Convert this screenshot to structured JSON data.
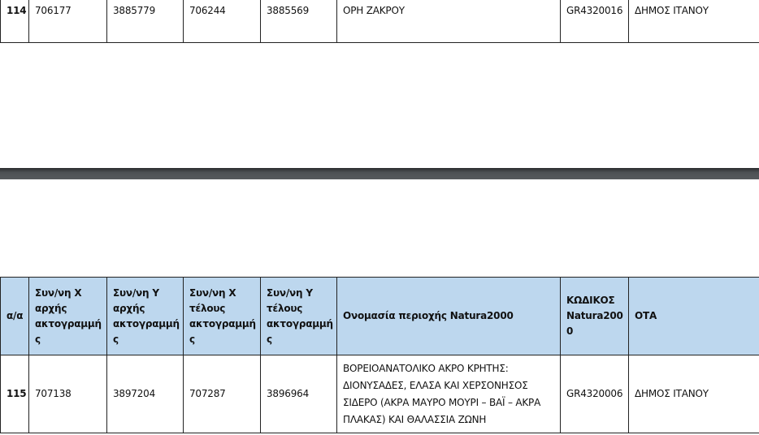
{
  "top_table": {
    "row": {
      "aa": "114",
      "x_start": "706177",
      "y_start": "3885779",
      "x_end": "706244",
      "y_end": "3885569",
      "name": "ΟΡΗ ΖΑΚΡΟΥ",
      "code": "GR4320016",
      "ota": "ΔΗΜΟΣ ΙΤΑΝΟΥ"
    }
  },
  "bottom_table": {
    "headers": {
      "aa": "α/α",
      "x_start": "Συν/νη Χ αρχής ακτογραμμή ς",
      "y_start": "Συν/νη Υ αρχής ακτογραμμή ς",
      "x_end": "Συν/νη Χ τέλους ακτογραμμή ς",
      "y_end": "Συν/νη Υ τέλους ακτογραμμή ς",
      "name": "Ονομασία περιοχής Natura2000",
      "code": "ΚΩΔΙΚΟΣ Natura200 0",
      "ota": "ΟΤΑ"
    },
    "row": {
      "aa": "115",
      "x_start": "707138",
      "y_start": "3897204",
      "x_end": "707287",
      "y_end": "3896964",
      "name": "ΒΟΡΕΙΟΑΝΑΤΟΛΙΚΟ ΑΚΡΟ ΚΡΗΤΗΣ: ΔΙΟΝΥΣΑΔΕΣ, ΕΛΑΣΑ ΚΑΙ ΧΕΡΣΟΝΗΣΟΣ ΣΙΔΕΡΟ (ΑΚΡΑ ΜΑΥΡΟ ΜΟΥΡΙ – ΒΑΪ – ΑΚΡΑ ΠΛΑΚΑΣ) ΚΑΙ ΘΑΛΑΣΣΙΑ ΖΩΝΗ",
      "code": "GR4320006",
      "ota": "ΔΗΜΟΣ ΙΤΑΝΟΥ"
    }
  },
  "colors": {
    "header_bg": "#bdd7ee",
    "page_separator": "#4d5154"
  }
}
